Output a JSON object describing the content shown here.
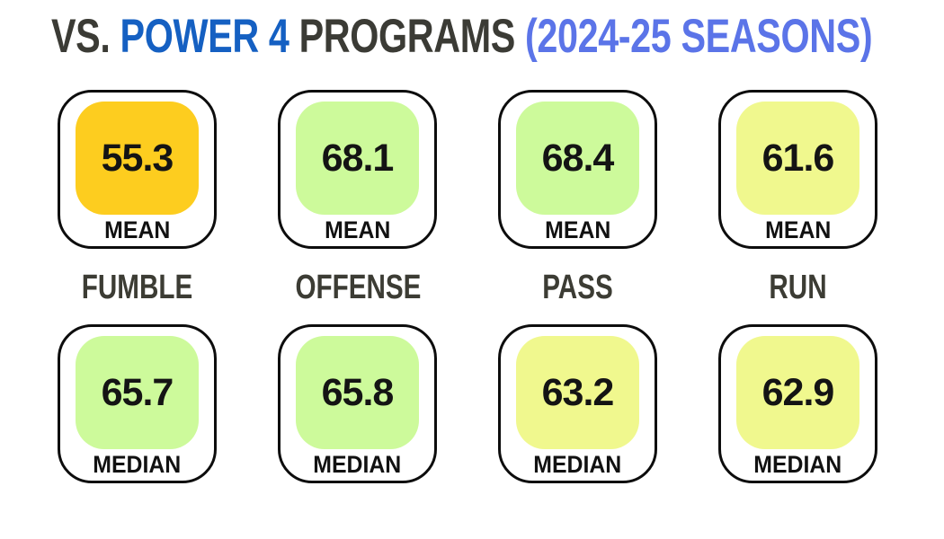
{
  "title": {
    "segments": [
      {
        "text": "VS. ",
        "color": "#3b3b35"
      },
      {
        "text": "POWER 4 ",
        "color": "#1560c2"
      },
      {
        "text": "PROGRAMS ",
        "color": "#3b3b35"
      },
      {
        "text": "(2024-25 SEASONS)",
        "color": "#5b74e8"
      }
    ]
  },
  "columns": [
    {
      "label": "FUMBLE",
      "mean": {
        "value": "55.3",
        "label": "MEAN",
        "color": "#fdcd1f"
      },
      "median": {
        "value": "65.7",
        "label": "MEDIAN",
        "color": "#cdfa9b"
      }
    },
    {
      "label": "OFFENSE",
      "mean": {
        "value": "68.1",
        "label": "MEAN",
        "color": "#cdfa9b"
      },
      "median": {
        "value": "65.8",
        "label": "MEDIAN",
        "color": "#cdfa9b"
      }
    },
    {
      "label": "PASS",
      "mean": {
        "value": "68.4",
        "label": "MEAN",
        "color": "#cdfa9b"
      },
      "median": {
        "value": "63.2",
        "label": "MEDIAN",
        "color": "#f0f88e"
      }
    },
    {
      "label": "RUN",
      "mean": {
        "value": "61.6",
        "label": "MEAN",
        "color": "#f0f88e"
      },
      "median": {
        "value": "62.9",
        "label": "MEDIAN",
        "color": "#f0f88e"
      }
    }
  ],
  "chart_data": {
    "type": "table",
    "title": "VS. POWER 4 PROGRAMS (2024-25 SEASONS)",
    "categories": [
      "FUMBLE",
      "OFFENSE",
      "PASS",
      "RUN"
    ],
    "series": [
      {
        "name": "MEAN",
        "values": [
          55.3,
          68.1,
          68.4,
          61.6
        ]
      },
      {
        "name": "MEDIAN",
        "values": [
          65.7,
          65.8,
          63.2,
          62.9
        ]
      }
    ],
    "layout": {
      "rows": [
        "MEAN",
        "MEDIAN"
      ],
      "legend": "none",
      "grid": false
    },
    "value_colors": {
      "gold": "#fdcd1f",
      "light_green": "#cdfa9b",
      "pale_yellow": "#f0f88e"
    }
  }
}
